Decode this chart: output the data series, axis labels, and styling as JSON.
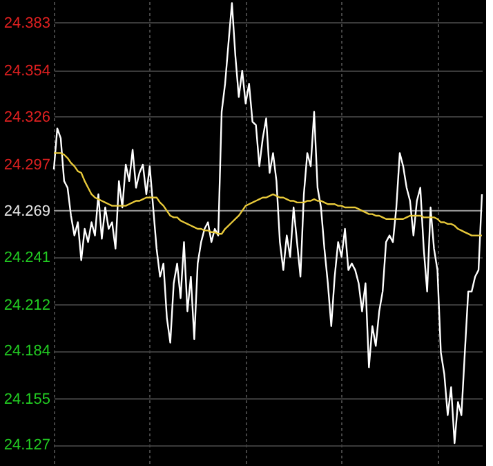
{
  "chart_data": {
    "type": "line",
    "categories": [
      null,
      null,
      null,
      null,
      null,
      null,
      null,
      null,
      null,
      null,
      null,
      null,
      null,
      null,
      null,
      null,
      null,
      null,
      null,
      null,
      null,
      null,
      null,
      null,
      null,
      null,
      null,
      null,
      null,
      null,
      null,
      null,
      null,
      null,
      null,
      null,
      null,
      null,
      null,
      null,
      null,
      null,
      null,
      null,
      null,
      null,
      null,
      null,
      null,
      null,
      null,
      null,
      null,
      null,
      null,
      null,
      null,
      null,
      null,
      null,
      null,
      null,
      null,
      null,
      null,
      null,
      null,
      null,
      null,
      null,
      null,
      null,
      null,
      null,
      null,
      null,
      null,
      null,
      null,
      null,
      null,
      null,
      null,
      null,
      null,
      null,
      null,
      null,
      null,
      null,
      null,
      null,
      null,
      null,
      null,
      null,
      null,
      null,
      null,
      null,
      null,
      null,
      null,
      null,
      null,
      null,
      null,
      null,
      null,
      null,
      null,
      null,
      null,
      null,
      null,
      null,
      null,
      null,
      null,
      null,
      null,
      null,
      null,
      null,
      null,
      null
    ],
    "series": [
      {
        "color": "#ffffff",
        "values": [
          24.294,
          24.319,
          24.313,
          24.287,
          24.283,
          24.266,
          24.254,
          24.262,
          24.239,
          24.258,
          24.25,
          24.262,
          24.254,
          24.279,
          24.252,
          24.271,
          24.258,
          24.262,
          24.246,
          24.287,
          24.271,
          24.297,
          24.287,
          24.306,
          24.283,
          24.292,
          24.297,
          24.279,
          24.296,
          24.271,
          24.246,
          24.229,
          24.237,
          24.204,
          24.189,
          24.225,
          24.237,
          24.216,
          24.25,
          24.208,
          24.229,
          24.191,
          24.237,
          24.25,
          24.258,
          24.262,
          24.25,
          24.258,
          24.254,
          24.329,
          24.346,
          24.371,
          24.395,
          24.363,
          24.338,
          24.354,
          24.334,
          24.346,
          24.323,
          24.321,
          24.296,
          24.313,
          24.325,
          24.292,
          24.304,
          24.287,
          24.25,
          24.233,
          24.254,
          24.241,
          24.271,
          24.25,
          24.229,
          24.279,
          24.304,
          24.296,
          24.329,
          24.283,
          24.271,
          24.246,
          24.225,
          24.199,
          24.229,
          24.25,
          24.241,
          24.258,
          24.233,
          24.237,
          24.233,
          24.225,
          24.208,
          24.225,
          24.174,
          24.199,
          24.187,
          24.208,
          24.22,
          24.25,
          24.254,
          24.25,
          24.271,
          24.304,
          24.296,
          24.283,
          24.275,
          24.254,
          24.275,
          24.283,
          24.246,
          24.22,
          24.271,
          24.246,
          24.233,
          24.183,
          24.17,
          24.145,
          24.162,
          24.128,
          24.153,
          24.145,
          24.183,
          24.22,
          24.22,
          24.229,
          24.233,
          24.279
        ]
      },
      {
        "color": "#e8c93a",
        "values": [
          24.304,
          24.304,
          24.304,
          24.303,
          24.301,
          24.298,
          24.296,
          24.293,
          24.292,
          24.287,
          24.283,
          24.279,
          24.277,
          24.276,
          24.275,
          24.274,
          24.273,
          24.272,
          24.272,
          24.272,
          24.272,
          24.272,
          24.273,
          24.274,
          24.275,
          24.275,
          24.276,
          24.277,
          24.277,
          24.277,
          24.277,
          24.274,
          24.272,
          24.269,
          24.266,
          24.265,
          24.265,
          24.263,
          24.262,
          24.261,
          24.26,
          24.259,
          24.258,
          24.258,
          24.257,
          24.257,
          24.256,
          24.256,
          24.255,
          24.255,
          24.258,
          24.26,
          24.262,
          24.264,
          24.266,
          24.269,
          24.272,
          24.273,
          24.274,
          24.275,
          24.276,
          24.277,
          24.277,
          24.278,
          24.279,
          24.278,
          24.277,
          24.277,
          24.276,
          24.275,
          24.275,
          24.274,
          24.274,
          24.274,
          24.275,
          24.275,
          24.276,
          24.275,
          24.275,
          24.274,
          24.273,
          24.273,
          24.273,
          24.272,
          24.272,
          24.271,
          24.271,
          24.271,
          24.271,
          24.27,
          24.269,
          24.268,
          24.267,
          24.267,
          24.266,
          24.266,
          24.265,
          24.264,
          24.264,
          24.264,
          24.264,
          24.264,
          24.264,
          24.265,
          24.266,
          24.266,
          24.266,
          24.266,
          24.265,
          24.265,
          24.265,
          24.265,
          24.264,
          24.262,
          24.262,
          24.261,
          24.261,
          24.26,
          24.258,
          24.257,
          24.256,
          24.255,
          24.254,
          24.254,
          24.254,
          24.254
        ]
      }
    ],
    "ylim": [
      24.115,
      24.396
    ],
    "yticks": [
      24.127,
      24.155,
      24.184,
      24.212,
      24.241,
      24.269,
      24.297,
      24.326,
      24.354,
      24.383
    ],
    "ref_lines": [
      {
        "axis": "y",
        "value": 24.269,
        "color": "#9a9a9a"
      }
    ],
    "grid": true,
    "tick_labels": "y",
    "line_style": "solid",
    "marker": "none"
  }
}
